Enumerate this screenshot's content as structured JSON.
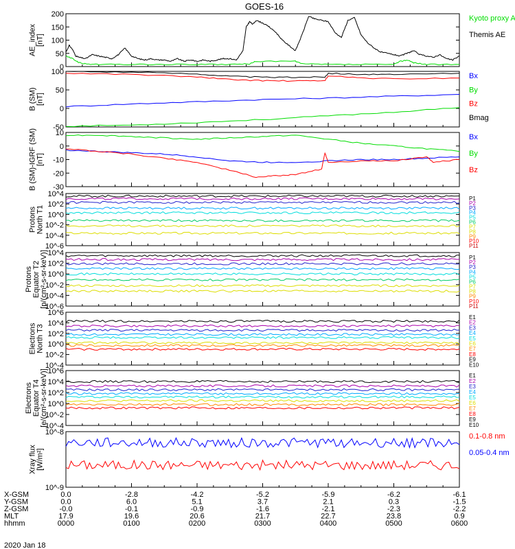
{
  "title": "GOES-16",
  "date_label": "2020 Jan 18",
  "ephemeris": {
    "rows": [
      {
        "label": "X-GSM",
        "values": [
          "0.0",
          "-2.8",
          "-4.2",
          "-5.2",
          "-5.9",
          "-6.2",
          "-6.1"
        ]
      },
      {
        "label": "Y-GSM",
        "values": [
          "0.0",
          "6.0",
          "5.1",
          "3.7",
          "2.1",
          "0.3",
          "-1.5"
        ]
      },
      {
        "label": "Z-GSM",
        "values": [
          "-0.0",
          "-0.1",
          "-0.9",
          "-1.6",
          "-2.1",
          "-2.3",
          "-2.2"
        ]
      },
      {
        "label": "MLT",
        "values": [
          "17.9",
          "19.6",
          "20.6",
          "21.7",
          "22.7",
          "23.8",
          "0.9"
        ]
      },
      {
        "label": "hhmm",
        "values": [
          "0000",
          "0100",
          "0200",
          "0300",
          "0400",
          "0500",
          "0600"
        ]
      }
    ]
  },
  "colors": {
    "black": "#000000",
    "green": "#00dd00",
    "blue": "#0000ff",
    "red": "#ff0000",
    "P1": "#000000",
    "P2": "#aa00aa",
    "P3": "#2222cc",
    "P4": "#00aaff",
    "P5": "#00dddd",
    "P6": "#00cc66",
    "P7": "#dddd00",
    "P8": "#dddd00",
    "P9": "#ff8800",
    "P10": "#ff0000",
    "P11": "#cc0000"
  },
  "chart_data": [
    {
      "type": "line",
      "ylabel": "AE_index\n[nT]",
      "ylim": [
        0,
        200
      ],
      "yticks": [
        0,
        50,
        100,
        150,
        200
      ],
      "xlim": [
        0,
        6
      ],
      "legend": [
        "Kyoto proxy AE",
        "Themis AE"
      ],
      "series": [
        {
          "name": "Themis AE",
          "color": "black",
          "x": [
            0,
            0.05,
            0.1,
            0.15,
            0.2,
            0.3,
            0.4,
            0.5,
            0.6,
            0.7,
            0.8,
            0.9,
            1.0,
            1.1,
            1.2,
            1.3,
            1.4,
            1.5,
            1.6,
            1.7,
            1.8,
            1.9,
            2.0,
            2.1,
            2.2,
            2.3,
            2.4,
            2.5,
            2.6,
            2.7,
            2.75,
            2.8,
            2.85,
            2.9,
            3.0,
            3.1,
            3.2,
            3.3,
            3.4,
            3.5,
            3.6,
            3.7,
            3.8,
            3.9,
            4.0,
            4.1,
            4.2,
            4.3,
            4.4,
            4.5,
            4.6,
            4.7,
            4.8,
            4.9,
            5.0,
            5.1,
            5.2,
            5.3,
            5.4,
            5.5,
            5.6,
            5.7,
            5.8,
            5.9,
            6.0
          ],
          "y": [
            55,
            80,
            65,
            40,
            35,
            30,
            45,
            40,
            35,
            30,
            45,
            70,
            40,
            30,
            25,
            30,
            25,
            25,
            20,
            30,
            20,
            25,
            20,
            25,
            20,
            25,
            30,
            30,
            25,
            60,
            150,
            170,
            160,
            175,
            165,
            150,
            130,
            100,
            80,
            60,
            120,
            190,
            180,
            175,
            170,
            130,
            110,
            175,
            185,
            120,
            90,
            70,
            55,
            50,
            45,
            40,
            50,
            60,
            45,
            40,
            35,
            45,
            30,
            25,
            40
          ]
        },
        {
          "name": "Kyoto proxy AE",
          "color": "green",
          "x": [
            0,
            0.1,
            0.2,
            0.3,
            0.5,
            1.0,
            1.5,
            2.0,
            2.5,
            2.8,
            2.9,
            3.5,
            3.6,
            4.0,
            4.5,
            5.0,
            5.1,
            5.2,
            5.3,
            5.5,
            6.0
          ],
          "y": [
            40,
            30,
            15,
            10,
            8,
            8,
            8,
            8,
            8,
            10,
            20,
            20,
            10,
            8,
            8,
            8,
            20,
            25,
            15,
            8,
            8
          ]
        }
      ]
    },
    {
      "type": "line",
      "ylabel": "B (SM)\n[nT]",
      "ylim": [
        -50,
        100
      ],
      "yticks": [
        -50,
        0,
        50,
        100
      ],
      "xlim": [
        0,
        6
      ],
      "legend": [
        "Bx",
        "By",
        "Bz",
        "Bmag"
      ],
      "series": [
        {
          "name": "Bx",
          "color": "blue",
          "x": [
            0,
            1,
            2,
            3,
            4,
            5,
            6
          ],
          "y": [
            5,
            12,
            18,
            24,
            28,
            33,
            38
          ]
        },
        {
          "name": "By",
          "color": "green",
          "x": [
            0,
            1,
            2,
            3,
            4,
            5,
            6
          ],
          "y": [
            -48,
            -45,
            -38,
            -30,
            -20,
            -10,
            2
          ]
        },
        {
          "name": "Bz",
          "color": "red",
          "x": [
            0,
            1,
            2,
            2.5,
            3,
            3.5,
            3.95,
            4.0,
            4.5,
            5,
            6
          ],
          "y": [
            95,
            92,
            85,
            78,
            75,
            74,
            75,
            88,
            82,
            80,
            82
          ]
        },
        {
          "name": "Bmag",
          "color": "black",
          "x": [
            0,
            1,
            2,
            2.5,
            3,
            3.5,
            3.95,
            4.0,
            4.5,
            5,
            6
          ],
          "y": [
            100,
            98,
            93,
            87,
            84,
            84,
            85,
            95,
            92,
            91,
            95
          ]
        }
      ]
    },
    {
      "type": "line",
      "ylabel": "B (SM)-IGRF (SM)\n[nT]",
      "ylim": [
        -30,
        10
      ],
      "yticks": [
        -30,
        -20,
        -10,
        0,
        10
      ],
      "xlim": [
        0,
        6
      ],
      "legend": [
        "Bx",
        "By",
        "Bz"
      ],
      "series": [
        {
          "name": "Bx",
          "color": "blue",
          "x": [
            0,
            0.5,
            1,
            1.5,
            2,
            2.5,
            3,
            3.5,
            4,
            4.5,
            5,
            5.5,
            6
          ],
          "y": [
            -3,
            -4,
            -5,
            -6,
            -8,
            -11,
            -12,
            -12,
            -11,
            -10,
            -10,
            -9,
            -8
          ]
        },
        {
          "name": "By",
          "color": "green",
          "x": [
            0,
            0.5,
            1,
            1.5,
            2,
            2.5,
            3,
            3.5,
            4,
            4.5,
            5,
            5.5,
            6
          ],
          "y": [
            8,
            8,
            7,
            6,
            5,
            6,
            7,
            8,
            5,
            2,
            0,
            -2,
            -4
          ]
        },
        {
          "name": "Bz",
          "color": "red",
          "x": [
            0,
            0.5,
            1,
            1.5,
            2,
            2.5,
            2.9,
            3.2,
            3.5,
            3.9,
            3.95,
            4.0,
            4.5,
            5,
            5.5,
            5.6,
            6
          ],
          "y": [
            -2,
            -4,
            -6,
            -9,
            -12,
            -18,
            -23,
            -22,
            -21,
            -17,
            -5,
            -12,
            -11,
            -11,
            -8,
            -12,
            -10
          ]
        }
      ]
    },
    {
      "type": "line",
      "ylabel": "Protons\nNorth T1",
      "yscale": "log",
      "ylim": [
        -6,
        4
      ],
      "yticks": [
        4,
        2,
        0,
        -2,
        -4,
        -6
      ],
      "xlim": [
        0,
        6
      ],
      "legend": [
        "P1",
        "P2",
        "P3",
        "P4",
        "P5",
        "P6",
        "P7",
        "P8",
        "P9",
        "P10",
        "P11"
      ],
      "series": [
        {
          "name": "P1",
          "color": "P1",
          "y": 3.5
        },
        {
          "name": "P2",
          "color": "P2",
          "y": 3.0
        },
        {
          "name": "P3",
          "color": "P3",
          "y": 2.3
        },
        {
          "name": "P4",
          "color": "P4",
          "y": 1.2
        },
        {
          "name": "P5",
          "color": "P5",
          "y": 0.3
        },
        {
          "name": "P6",
          "color": "P6",
          "y": -1.2
        },
        {
          "name": "P7",
          "color": "P7",
          "y": -2.2
        },
        {
          "name": "P8",
          "color": "P8",
          "y": -3.6
        }
      ]
    },
    {
      "type": "line",
      "ylabel": "Protons\nEquator T2\n[p/(cm²-s-sr-keV)]",
      "yscale": "log",
      "ylim": [
        -6,
        4
      ],
      "yticks": [
        4,
        2,
        0,
        -2,
        -4,
        -6
      ],
      "xlim": [
        0,
        6
      ],
      "legend": [
        "P1",
        "P2",
        "P3",
        "P4",
        "P5",
        "P6",
        "P7",
        "P8",
        "P9",
        "P10",
        "P11"
      ],
      "series": [
        {
          "name": "P1",
          "color": "P1",
          "y": 3.4
        },
        {
          "name": "P2",
          "color": "P2",
          "y": 2.7
        },
        {
          "name": "P3",
          "color": "P3",
          "y": 1.9
        },
        {
          "name": "P4",
          "color": "P4",
          "y": 1.0
        },
        {
          "name": "P5",
          "color": "P5",
          "y": 0.0
        },
        {
          "name": "P6",
          "color": "P6",
          "y": -1.1
        },
        {
          "name": "P7",
          "color": "P7",
          "y": -2.2
        },
        {
          "name": "P8",
          "color": "P8",
          "y": -3.2
        }
      ]
    },
    {
      "type": "line",
      "ylabel": "Electrons\nNorth T3",
      "yscale": "log",
      "ylim": [
        -4,
        6
      ],
      "yticks": [
        6,
        4,
        2,
        0,
        -2,
        -4
      ],
      "xlim": [
        0,
        6
      ],
      "legend": [
        "E1",
        "E2",
        "E3",
        "E4",
        "E5",
        "E6",
        "E7",
        "E8",
        "E9",
        "E10"
      ],
      "series": [
        {
          "name": "E1",
          "color": "P1",
          "y": 4.3
        },
        {
          "name": "E2",
          "color": "P2",
          "y": 3.4
        },
        {
          "name": "E3",
          "color": "P3",
          "y": 2.6
        },
        {
          "name": "E4",
          "color": "P4",
          "y": 1.8
        },
        {
          "name": "E5",
          "color": "P5",
          "y": 1.2
        },
        {
          "name": "E6",
          "color": "P7",
          "y": 0.2
        },
        {
          "name": "E7",
          "color": "P9",
          "y": -0.3
        },
        {
          "name": "E8",
          "color": "P10",
          "y": -1.0
        }
      ]
    },
    {
      "type": "line",
      "ylabel": "Electrons\nEquator T4\n[e/(cm²-s-sr-keV)]",
      "yscale": "log",
      "ylim": [
        -4,
        6
      ],
      "yticks": [
        6,
        4,
        2,
        0,
        -2,
        -4
      ],
      "xlim": [
        0,
        6
      ],
      "legend": [
        "E1",
        "E2",
        "E3",
        "E4",
        "E5",
        "E6",
        "E7",
        "E8",
        "E9",
        "E10"
      ],
      "series": [
        {
          "name": "E1",
          "color": "P1",
          "y": 4.0
        },
        {
          "name": "E2",
          "color": "P2",
          "y": 3.2
        },
        {
          "name": "E3",
          "color": "P3",
          "y": 2.5
        },
        {
          "name": "E4",
          "color": "P4",
          "y": 1.8
        },
        {
          "name": "E5",
          "color": "P5",
          "y": 1.2
        },
        {
          "name": "E6",
          "color": "P7",
          "y": 0.5
        },
        {
          "name": "E7",
          "color": "P9",
          "y": -0.2
        },
        {
          "name": "E8",
          "color": "P10",
          "y": -0.8
        }
      ]
    },
    {
      "type": "line",
      "ylabel": "Xray flux\n[W/m²]",
      "yscale": "log",
      "ylim": [
        -9,
        -8
      ],
      "yticks": [
        -8,
        -9
      ],
      "xlim": [
        0,
        6
      ],
      "legend": [
        "0.1-0.8 nm",
        "0.05-0.4 nm"
      ],
      "series": [
        {
          "name": "0.05-0.4 nm",
          "color": "blue",
          "y": -8.2
        },
        {
          "name": "0.1-0.8 nm",
          "color": "red",
          "y": -8.6
        }
      ]
    }
  ]
}
